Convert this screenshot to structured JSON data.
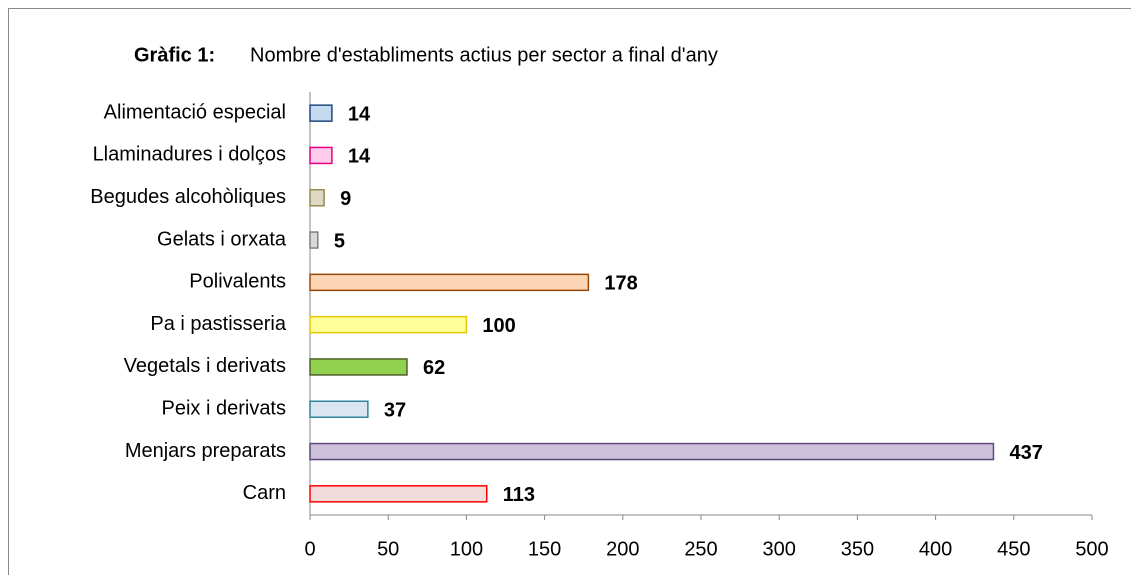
{
  "chart_data": {
    "type": "bar",
    "orientation": "horizontal",
    "title_label": "Gràfic 1:",
    "title": "Nombre d'establiments actius per sector a final d'any",
    "categories": [
      "Alimentació especial",
      "Llaminadures i dolços",
      "Begudes alcohòliques",
      "Gelats i orxata",
      "Polivalents",
      "Pa i pastisseria",
      "Vegetals i derivats",
      "Peix i derivats",
      "Menjars preparats",
      "Carn"
    ],
    "values": [
      14,
      14,
      9,
      5,
      178,
      100,
      62,
      37,
      437,
      113
    ],
    "colors": [
      "#c5d9f1",
      "#ffccee",
      "#ddd9c4",
      "#d9d9d9",
      "#fcd5b4",
      "#ffff99",
      "#92d050",
      "#dbe5f1",
      "#ccc0da",
      "#f2dcdb"
    ],
    "edgecolors": [
      "#1f497d",
      "#e6007e",
      "#948a54",
      "#7f7f7f",
      "#984807",
      "#e6c800",
      "#4f6228",
      "#31859c",
      "#5f497a",
      "#ff0000"
    ],
    "xlim": [
      0,
      500
    ],
    "xticks": [
      0,
      50,
      100,
      150,
      200,
      250,
      300,
      350,
      400,
      450,
      500
    ],
    "grid": false
  }
}
